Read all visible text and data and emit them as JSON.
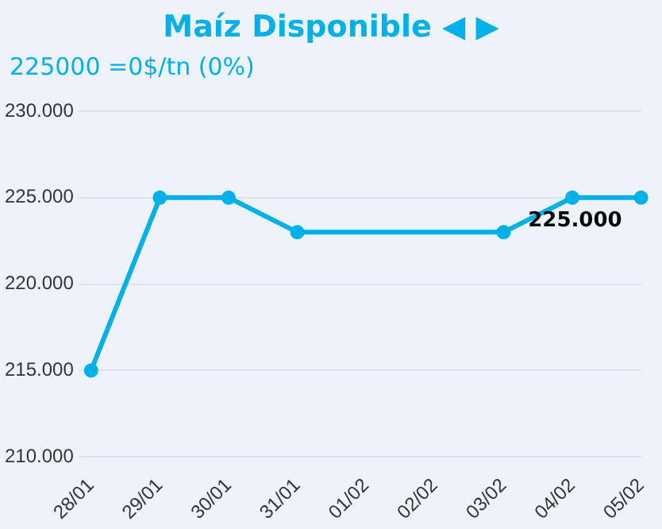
{
  "chart_data": {
    "type": "line",
    "title": "Maíz Disponible ◀ ▶",
    "subtitle": "225000 =0$/tn (0%)",
    "categories": [
      "28/01",
      "29/01",
      "30/01",
      "31/01",
      "01/02",
      "02/02",
      "03/02",
      "04/02",
      "05/02"
    ],
    "series": [
      {
        "color": "#00b0e8",
        "values": [
          215000,
          225000,
          225000,
          223000,
          null,
          null,
          223000,
          225000,
          225000
        ]
      }
    ],
    "ylim": [
      210000,
      230000
    ],
    "yticks": [
      {
        "value": 210000,
        "label": "210.000"
      },
      {
        "value": 215000,
        "label": "215.000"
      },
      {
        "value": 220000,
        "label": "220.000"
      },
      {
        "value": 225000,
        "label": "225.000"
      },
      {
        "value": 230000,
        "label": "230.000"
      }
    ],
    "annotations": [
      {
        "text": "225.000",
        "x": "05/02",
        "y": 225000
      }
    ],
    "grid": "y",
    "legend": false,
    "marker": "circle",
    "line_style": "solid"
  }
}
